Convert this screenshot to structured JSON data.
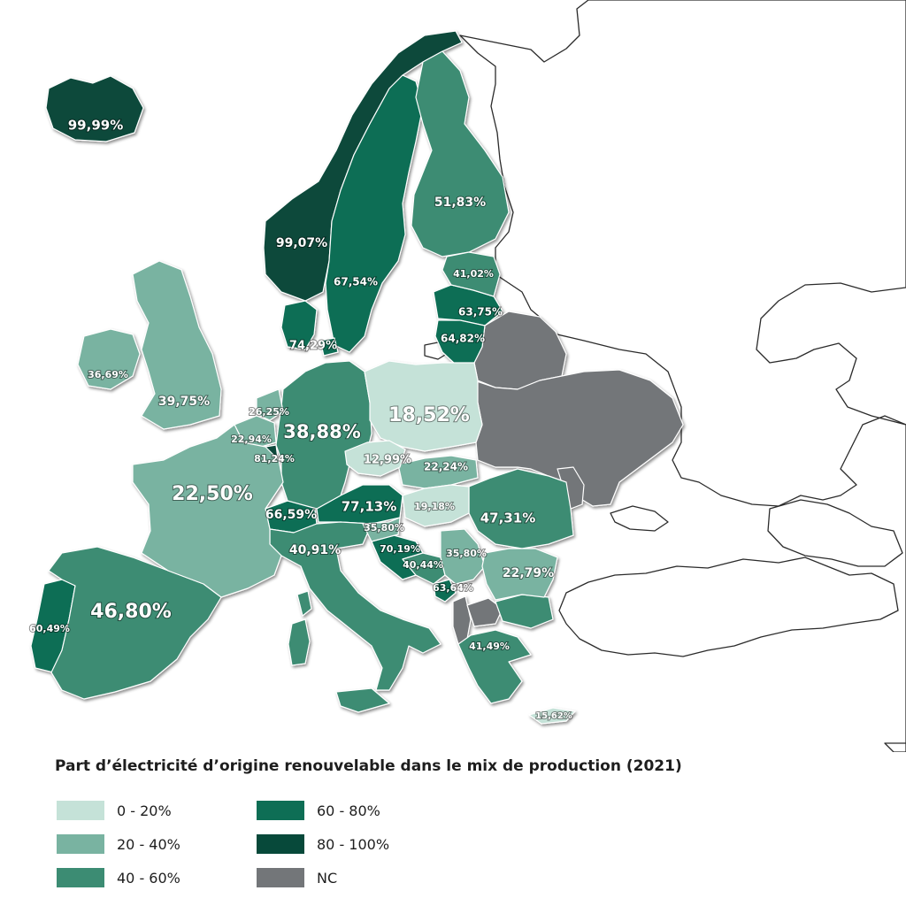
{
  "legend": {
    "title": "Part d’électricité d’origine renouvelable dans le mix de production (2021)",
    "items": [
      {
        "label": "0 - 20%",
        "color": "#c5e2d8"
      },
      {
        "label": "20 - 40%",
        "color": "#79b3a1"
      },
      {
        "label": "40 - 60%",
        "color": "#3c8c73"
      },
      {
        "label": "60 - 80%",
        "color": "#0e6e55"
      },
      {
        "label": "80 - 100%",
        "color": "#07493a"
      },
      {
        "label": "NC",
        "color": "#737679"
      }
    ]
  },
  "countries": [
    {
      "id": "iceland",
      "value": "99,99%",
      "class": "80-100"
    },
    {
      "id": "norway",
      "value": "99,07%",
      "class": "80-100"
    },
    {
      "id": "sweden",
      "value": "67,54%",
      "class": "60-80"
    },
    {
      "id": "finland",
      "value": "51,83%",
      "class": "40-60"
    },
    {
      "id": "estonia",
      "value": "41,02%",
      "class": "40-60"
    },
    {
      "id": "latvia",
      "value": "63,75%",
      "class": "60-80"
    },
    {
      "id": "lithuania",
      "value": "64,82%",
      "class": "60-80"
    },
    {
      "id": "denmark",
      "value": "74,29%",
      "class": "60-80"
    },
    {
      "id": "ireland",
      "value": "36,69%",
      "class": "20-40"
    },
    {
      "id": "united-kingdom",
      "value": "39,75%",
      "class": "20-40"
    },
    {
      "id": "netherlands",
      "value": "26,25%",
      "class": "20-40"
    },
    {
      "id": "belgium",
      "value": "22,94%",
      "class": "20-40"
    },
    {
      "id": "luxembourg",
      "value": "81,24%",
      "class": "80-100"
    },
    {
      "id": "germany",
      "value": "38,88%",
      "class": "20-40"
    },
    {
      "id": "poland",
      "value": "18,52%",
      "class": "0-20"
    },
    {
      "id": "czechia",
      "value": "12,99%",
      "class": "0-20"
    },
    {
      "id": "slovakia",
      "value": "22,24%",
      "class": "20-40"
    },
    {
      "id": "france",
      "value": "22,50%",
      "class": "20-40"
    },
    {
      "id": "switzerland",
      "value": "66,59%",
      "class": "60-80"
    },
    {
      "id": "austria",
      "value": "77,13%",
      "class": "60-80"
    },
    {
      "id": "hungary",
      "value": "19,18%",
      "class": "0-20"
    },
    {
      "id": "romania",
      "value": "47,31%",
      "class": "40-60"
    },
    {
      "id": "slovenia",
      "value": "35,80%",
      "class": "20-40"
    },
    {
      "id": "croatia",
      "value": "70,19%",
      "class": "60-80"
    },
    {
      "id": "bosnia",
      "value": "40,44%",
      "class": "40-60"
    },
    {
      "id": "serbia",
      "value": "35,80%",
      "class": "20-40"
    },
    {
      "id": "bulgaria",
      "value": "22,79%",
      "class": "20-40"
    },
    {
      "id": "montenegro",
      "value": "63,64%",
      "class": "60-80"
    },
    {
      "id": "italy",
      "value": "40,91%",
      "class": "40-60"
    },
    {
      "id": "spain",
      "value": "46,80%",
      "class": "40-60"
    },
    {
      "id": "portugal",
      "value": "60,49%",
      "class": "60-80"
    },
    {
      "id": "greece",
      "value": "41,49%",
      "class": "40-60"
    },
    {
      "id": "cyprus",
      "value": "15,62%",
      "class": "0-20"
    },
    {
      "id": "belarus",
      "value": "",
      "class": "NC"
    },
    {
      "id": "ukraine",
      "value": "",
      "class": "NC"
    },
    {
      "id": "moldova",
      "value": "",
      "class": "NC"
    },
    {
      "id": "albania",
      "value": "",
      "class": "NC"
    },
    {
      "id": "north-macedonia",
      "value": "",
      "class": "NC"
    }
  ]
}
